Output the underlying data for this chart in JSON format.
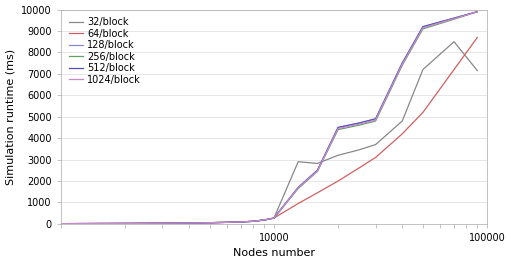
{
  "xlabel": "Nodes number",
  "ylabel": "Simulation runtime (ms)",
  "ylim": [
    0,
    10000
  ],
  "xlim": [
    1000,
    100000
  ],
  "series": [
    {
      "label": "32/block",
      "color": "#888888",
      "x": [
        500,
        1000,
        2000,
        3000,
        4000,
        5000,
        6000,
        7000,
        8000,
        9000,
        10000,
        13000,
        16000,
        20000,
        25000,
        30000,
        40000,
        50000,
        70000,
        90000
      ],
      "y": [
        5,
        10,
        20,
        30,
        40,
        55,
        70,
        90,
        120,
        180,
        270,
        2900,
        2820,
        3200,
        3450,
        3700,
        4800,
        7200,
        8500,
        7150
      ]
    },
    {
      "label": "64/block",
      "color": "#d06060",
      "x": [
        500,
        1000,
        2000,
        3000,
        4000,
        5000,
        6000,
        7000,
        8000,
        9000,
        10000,
        13000,
        16000,
        20000,
        25000,
        30000,
        40000,
        50000,
        70000,
        90000
      ],
      "y": [
        5,
        10,
        20,
        30,
        40,
        55,
        70,
        90,
        120,
        180,
        270,
        950,
        1450,
        2000,
        2600,
        3100,
        4200,
        5200,
        7200,
        8700
      ]
    },
    {
      "label": "128/block",
      "color": "#8888cc",
      "x": [
        500,
        1000,
        2000,
        3000,
        4000,
        5000,
        6000,
        7000,
        8000,
        9000,
        10000,
        13000,
        16000,
        20000,
        25000,
        30000,
        40000,
        50000,
        70000,
        90000
      ],
      "y": [
        5,
        10,
        20,
        30,
        40,
        55,
        70,
        90,
        120,
        180,
        270,
        1700,
        2500,
        4500,
        4700,
        4900,
        7500,
        9200,
        9600,
        9900
      ]
    },
    {
      "label": "256/block",
      "color": "#60a060",
      "x": [
        500,
        1000,
        2000,
        3000,
        4000,
        5000,
        6000,
        7000,
        8000,
        9000,
        10000,
        13000,
        16000,
        20000,
        25000,
        30000,
        40000,
        50000,
        70000,
        90000
      ],
      "y": [
        5,
        10,
        20,
        30,
        40,
        55,
        70,
        90,
        120,
        180,
        270,
        1650,
        2450,
        4400,
        4600,
        4800,
        7400,
        9100,
        9550,
        9900
      ]
    },
    {
      "label": "512/block",
      "color": "#5050bb",
      "x": [
        500,
        1000,
        2000,
        3000,
        4000,
        5000,
        6000,
        7000,
        8000,
        9000,
        10000,
        13000,
        16000,
        20000,
        25000,
        30000,
        40000,
        50000,
        70000,
        90000
      ],
      "y": [
        5,
        10,
        20,
        30,
        40,
        55,
        70,
        90,
        120,
        180,
        270,
        1700,
        2500,
        4500,
        4700,
        4900,
        7500,
        9200,
        9600,
        9900
      ]
    },
    {
      "label": "1024/block",
      "color": "#cc88cc",
      "x": [
        500,
        1000,
        2000,
        3000,
        4000,
        5000,
        6000,
        7000,
        8000,
        9000,
        10000,
        13000,
        16000,
        20000,
        25000,
        30000,
        40000,
        50000,
        70000,
        90000
      ],
      "y": [
        5,
        10,
        20,
        30,
        40,
        55,
        70,
        90,
        120,
        180,
        270,
        1680,
        2470,
        4450,
        4650,
        4850,
        7450,
        9150,
        9575,
        9900
      ]
    }
  ],
  "legend_fontsize": 7,
  "tick_fontsize": 7,
  "label_fontsize": 8,
  "axis_color": "#aaaaaa",
  "bg_color": "#ffffff",
  "grid_color": "#dddddd",
  "linewidth": 0.9
}
